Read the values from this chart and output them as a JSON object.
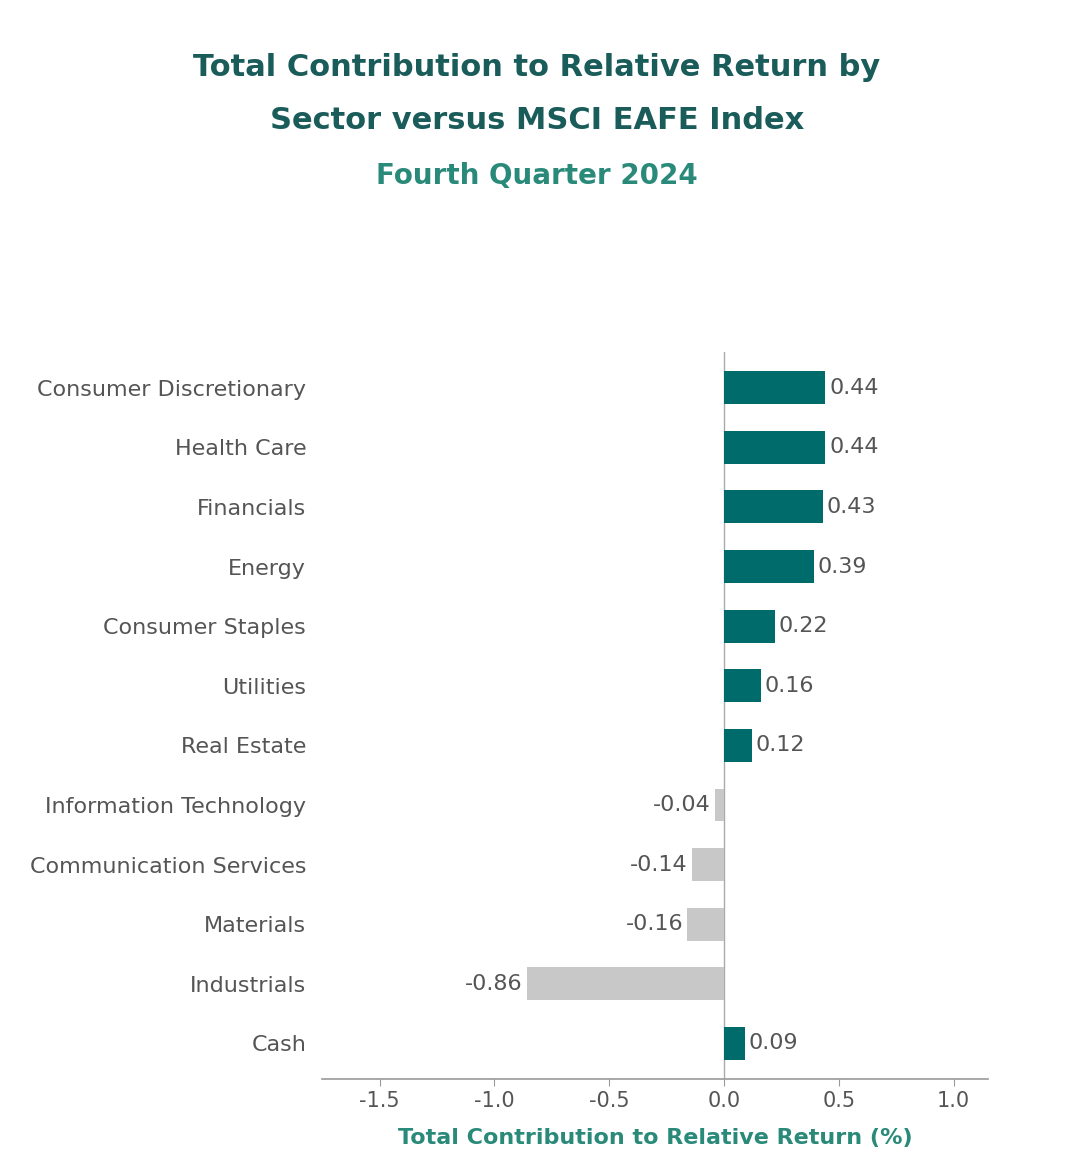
{
  "title_line1": "Total Contribution to Relative Return by",
  "title_line2": "Sector versus MSCI EAFE Index",
  "subtitle": "Fourth Quarter 2024",
  "xlabel": "Total Contribution to Relative Return (%)",
  "categories": [
    "Consumer Discretionary",
    "Health Care",
    "Financials",
    "Energy",
    "Consumer Staples",
    "Utilities",
    "Real Estate",
    "Information Technology",
    "Communication Services",
    "Materials",
    "Industrials",
    "Cash"
  ],
  "values": [
    0.44,
    0.44,
    0.43,
    0.39,
    0.22,
    0.16,
    0.12,
    -0.04,
    -0.14,
    -0.16,
    -0.86,
    0.09
  ],
  "bar_colors": [
    "#006B6B",
    "#006B6B",
    "#006B6B",
    "#006B6B",
    "#006B6B",
    "#006B6B",
    "#006B6B",
    "#C8C8C8",
    "#C8C8C8",
    "#C8C8C8",
    "#C8C8C8",
    "#006B6B"
  ],
  "title_color": "#1A5C5A",
  "subtitle_color": "#2A8A7A",
  "xlabel_color": "#2A8A7A",
  "value_label_color": "#555555",
  "tick_label_color": "#555555",
  "xlim": [
    -1.75,
    1.15
  ],
  "xticks": [
    -1.5,
    -1.0,
    -0.5,
    0.0,
    0.5,
    1.0
  ],
  "title_fontsize": 22,
  "subtitle_fontsize": 20,
  "xlabel_fontsize": 16,
  "tick_fontsize": 15,
  "label_fontsize": 16,
  "value_fontsize": 16,
  "background_color": "#FFFFFF",
  "bar_height": 0.55
}
